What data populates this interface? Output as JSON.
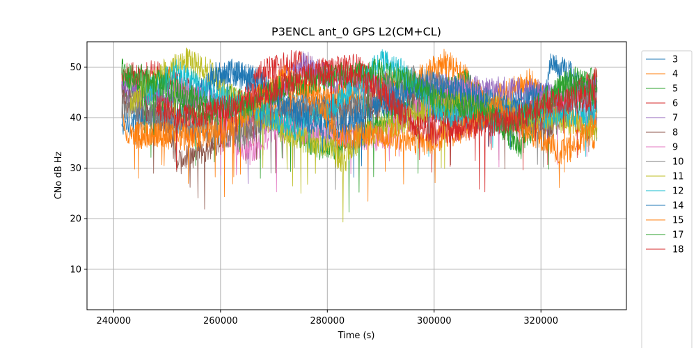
{
  "chart_data": {
    "type": "line",
    "title": "P3ENCL ant_0 GPS L2(CM+CL)",
    "xlabel": "Time (s)",
    "ylabel": "CNo dB Hz",
    "xlim": [
      235000,
      336000
    ],
    "ylim": [
      2,
      55
    ],
    "xticks": [
      240000,
      260000,
      280000,
      300000,
      320000
    ],
    "xtick_labels": [
      "240000",
      "260000",
      "280000",
      "300000",
      "320000"
    ],
    "yticks": [
      10,
      20,
      30,
      40,
      50
    ],
    "ytick_labels": [
      "10",
      "20",
      "30",
      "40",
      "50"
    ],
    "grid": true,
    "legend": "outside-right",
    "series": [
      {
        "name": "3",
        "color": "#1f77b4",
        "anchors": [
          [
            241500,
            38
          ],
          [
            246000,
            41
          ],
          [
            252000,
            39
          ],
          [
            256000,
            45
          ],
          [
            262000,
            49
          ],
          [
            268000,
            47
          ],
          [
            272000,
            43
          ],
          [
            320000,
            41
          ],
          [
            322000,
            51
          ],
          [
            326000,
            48
          ],
          [
            329000,
            43
          ],
          [
            330500,
            36
          ]
        ]
      },
      {
        "name": "4",
        "color": "#ff7f0e",
        "anchors": [
          [
            241500,
            40
          ],
          [
            243000,
            36
          ],
          [
            272000,
            42
          ],
          [
            276000,
            46
          ],
          [
            280000,
            44
          ],
          [
            296000,
            47
          ],
          [
            302000,
            51
          ],
          [
            306000,
            48
          ],
          [
            310000,
            43
          ],
          [
            318000,
            47
          ],
          [
            322000,
            42
          ],
          [
            330500,
            36
          ]
        ]
      },
      {
        "name": "5",
        "color": "#2ca02c",
        "anchors": [
          [
            241500,
            47
          ],
          [
            246000,
            45
          ],
          [
            252000,
            42
          ],
          [
            258000,
            40
          ],
          [
            262000,
            44
          ],
          [
            280000,
            33.5
          ],
          [
            300000,
            44
          ],
          [
            306000,
            47
          ],
          [
            310000,
            42
          ],
          [
            316000,
            34
          ],
          [
            322000,
            44
          ],
          [
            326000,
            48
          ],
          [
            330500,
            47
          ]
        ]
      },
      {
        "name": "6",
        "color": "#d62728",
        "anchors": [
          [
            241500,
            48
          ],
          [
            248000,
            49
          ],
          [
            256000,
            44
          ],
          [
            262000,
            40
          ],
          [
            268000,
            49
          ],
          [
            274000,
            51
          ],
          [
            278000,
            49
          ],
          [
            286000,
            50
          ],
          [
            292000,
            44
          ],
          [
            296000,
            38
          ],
          [
            300000,
            40
          ],
          [
            320000,
            39
          ],
          [
            330500,
            48
          ]
        ]
      },
      {
        "name": "7",
        "color": "#9467bd",
        "anchors": [
          [
            241500,
            45
          ],
          [
            258000,
            44
          ],
          [
            266000,
            38
          ],
          [
            270000,
            44
          ],
          [
            276000,
            51
          ],
          [
            282000,
            47
          ],
          [
            320000,
            45
          ],
          [
            324000,
            43
          ],
          [
            330500,
            46
          ]
        ]
      },
      {
        "name": "8",
        "color": "#8c564b",
        "anchors": [
          [
            241500,
            44
          ],
          [
            246000,
            42
          ],
          [
            250000,
            39
          ],
          [
            252000,
            31
          ],
          [
            268000,
            40
          ],
          [
            290000,
            42
          ],
          [
            300000,
            44
          ],
          [
            322000,
            38
          ],
          [
            326000,
            44
          ],
          [
            330500,
            46
          ]
        ]
      },
      {
        "name": "9",
        "color": "#e377c2",
        "anchors": [
          [
            252000,
            46
          ],
          [
            258000,
            43
          ],
          [
            262000,
            36
          ],
          [
            266000,
            33
          ],
          [
            270000,
            38
          ],
          [
            290000,
            36
          ],
          [
            300000,
            44
          ],
          [
            306000,
            46
          ],
          [
            312000,
            40
          ],
          [
            318000,
            41
          ],
          [
            326000,
            45
          ],
          [
            330500,
            40
          ]
        ]
      },
      {
        "name": "10",
        "color": "#7f7f7f",
        "anchors": [
          [
            241500,
            42
          ],
          [
            264000,
            36
          ],
          [
            270000,
            40
          ],
          [
            276000,
            42
          ],
          [
            282000,
            40
          ],
          [
            290000,
            45
          ],
          [
            296000,
            48
          ],
          [
            302000,
            46
          ],
          [
            308000,
            40
          ],
          [
            322000,
            38
          ],
          [
            326000,
            44
          ],
          [
            330500,
            43
          ]
        ]
      },
      {
        "name": "11",
        "color": "#bcbd22",
        "anchors": [
          [
            243000,
            42
          ],
          [
            248000,
            48
          ],
          [
            253000,
            51.5
          ],
          [
            258000,
            49
          ],
          [
            262000,
            44
          ],
          [
            268000,
            40
          ],
          [
            274000,
            36
          ],
          [
            280000,
            35
          ],
          [
            283000,
            31
          ],
          [
            286000,
            36
          ],
          [
            296000,
            40
          ],
          [
            300000,
            43
          ],
          [
            310000,
            42
          ],
          [
            322000,
            40
          ],
          [
            330500,
            38
          ]
        ]
      },
      {
        "name": "12",
        "color": "#17becf",
        "anchors": [
          [
            246000,
            45
          ],
          [
            252000,
            49
          ],
          [
            256000,
            46
          ],
          [
            266000,
            42
          ],
          [
            274000,
            38
          ],
          [
            280000,
            41
          ],
          [
            286000,
            47
          ],
          [
            290000,
            51
          ],
          [
            294000,
            49
          ],
          [
            298000,
            45
          ],
          [
            302000,
            40
          ],
          [
            330500,
            41
          ]
        ]
      },
      {
        "name": "14",
        "color": "#1f77b4",
        "anchors": [
          [
            258000,
            48
          ],
          [
            262000,
            49
          ],
          [
            268000,
            46
          ],
          [
            274000,
            41
          ],
          [
            280000,
            38
          ],
          [
            286000,
            40
          ],
          [
            292000,
            44
          ],
          [
            300000,
            47
          ],
          [
            308000,
            44
          ],
          [
            314000,
            42
          ],
          [
            320000,
            45
          ]
        ]
      },
      {
        "name": "15",
        "color": "#ff7f0e",
        "anchors": [
          [
            244000,
            37
          ],
          [
            250000,
            36.5
          ],
          [
            256000,
            36
          ],
          [
            262000,
            38
          ],
          [
            268000,
            45
          ],
          [
            272000,
            48
          ],
          [
            278000,
            44
          ],
          [
            282000,
            36
          ],
          [
            290000,
            37
          ],
          [
            298000,
            35
          ],
          [
            306000,
            38
          ],
          [
            312000,
            42
          ],
          [
            318000,
            37
          ],
          [
            324000,
            33
          ],
          [
            328000,
            36
          ],
          [
            330500,
            40
          ]
        ]
      },
      {
        "name": "17",
        "color": "#2ca02c",
        "anchors": [
          [
            241500,
            49
          ],
          [
            248000,
            47
          ],
          [
            254000,
            44
          ],
          [
            260000,
            41
          ],
          [
            266000,
            43
          ],
          [
            272000,
            46
          ],
          [
            280000,
            48
          ],
          [
            290000,
            49
          ],
          [
            296000,
            47
          ],
          [
            302000,
            43
          ],
          [
            308000,
            42
          ],
          [
            314000,
            38
          ],
          [
            318000,
            41
          ],
          [
            324000,
            46
          ],
          [
            330500,
            45
          ]
        ]
      },
      {
        "name": "18",
        "color": "#d62728",
        "anchors": [
          [
            248000,
            42
          ],
          [
            254000,
            40
          ],
          [
            262000,
            42
          ],
          [
            268000,
            45
          ],
          [
            276000,
            48
          ],
          [
            280000,
            49
          ],
          [
            286000,
            48
          ],
          [
            290000,
            45
          ],
          [
            296000,
            39
          ],
          [
            300000,
            37
          ],
          [
            316000,
            40
          ],
          [
            322000,
            43
          ],
          [
            330500,
            44
          ]
        ]
      }
    ]
  }
}
